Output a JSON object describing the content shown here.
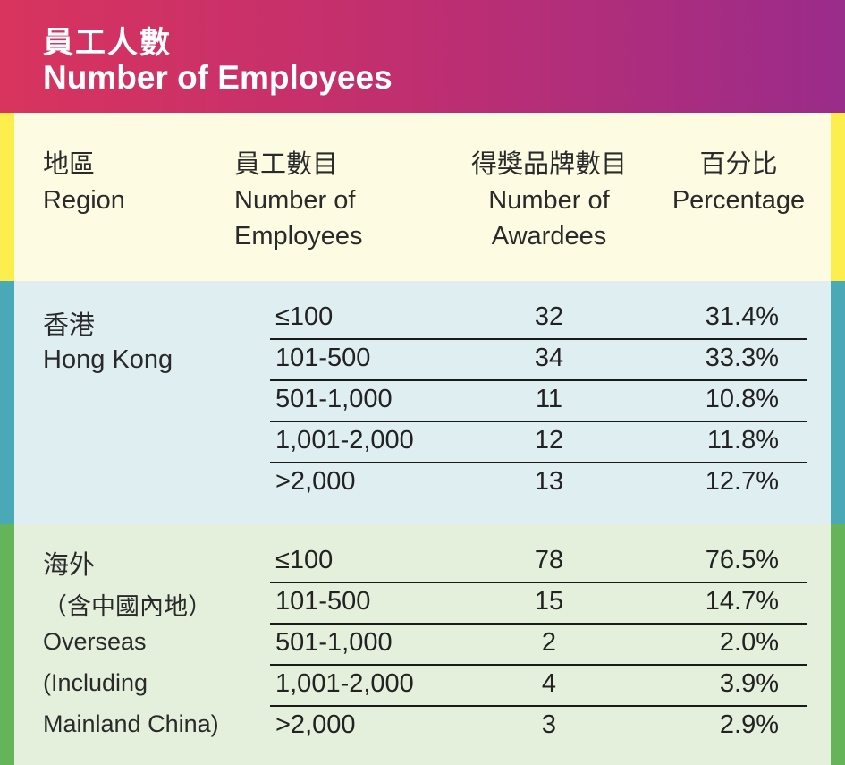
{
  "header": {
    "title_zh": "員工人數",
    "title_en": "Number of Employees"
  },
  "columns": {
    "region": {
      "zh": "地區",
      "en": "Region"
    },
    "employees": {
      "zh": "員工數目",
      "en_line1": "Number of",
      "en_line2": "Employees"
    },
    "awardees": {
      "zh": "得獎品牌數目",
      "en_line1": "Number of",
      "en_line2": "Awardees"
    },
    "percentage": {
      "zh": "百分比",
      "en": "Percentage"
    }
  },
  "regions": [
    {
      "label_lines": [
        "香港",
        "Hong Kong"
      ],
      "rows": [
        {
          "employees": "≤100",
          "awardees": "32",
          "percentage": "31.4%"
        },
        {
          "employees": "101-500",
          "awardees": "34",
          "percentage": "33.3%"
        },
        {
          "employees": "501-1,000",
          "awardees": "11",
          "percentage": "10.8%"
        },
        {
          "employees": "1,001-2,000",
          "awardees": "12",
          "percentage": "11.8%"
        },
        {
          "employees": ">2,000",
          "awardees": "13",
          "percentage": "12.7%"
        }
      ]
    },
    {
      "label_lines": [
        "海外",
        "（含中國內地）",
        "Overseas",
        "(Including",
        "Mainland China)"
      ],
      "rows": [
        {
          "employees": "≤100",
          "awardees": "78",
          "percentage": "76.5%"
        },
        {
          "employees": "101-500",
          "awardees": "15",
          "percentage": "14.7%"
        },
        {
          "employees": "501-1,000",
          "awardees": "2",
          "percentage": "2.0%"
        },
        {
          "employees": "1,001-2,000",
          "awardees": "4",
          "percentage": "3.9%"
        },
        {
          "employees": ">2,000",
          "awardees": "3",
          "percentage": "2.9%"
        }
      ]
    }
  ]
}
